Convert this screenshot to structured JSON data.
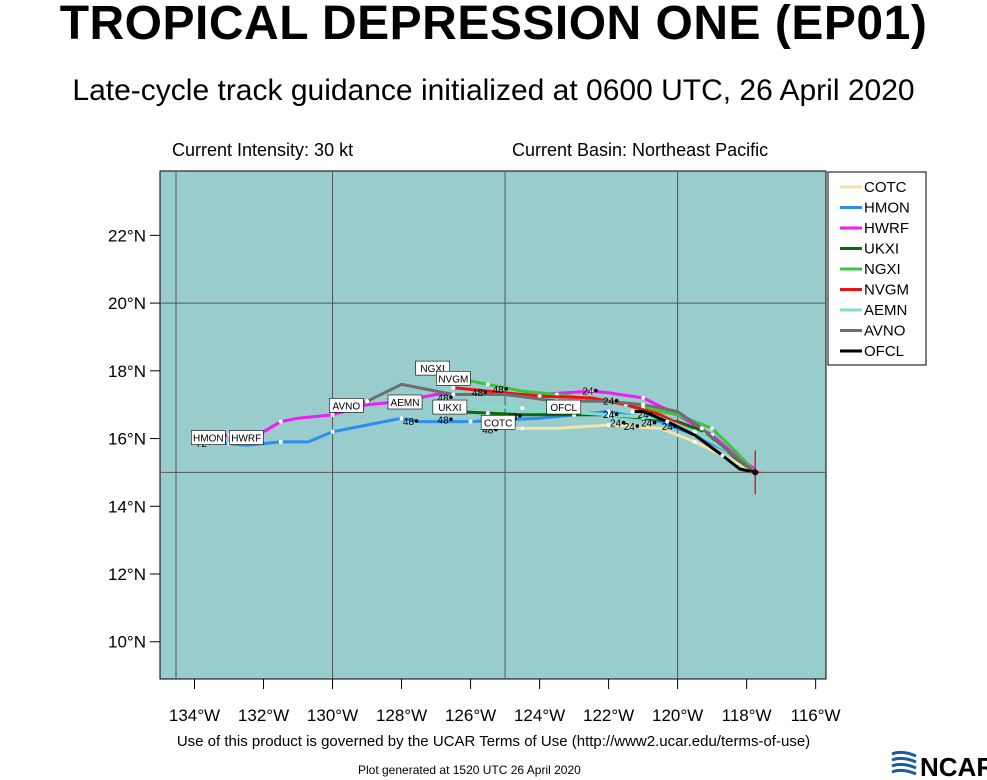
{
  "header": {
    "title": "TROPICAL DEPRESSION ONE (EP01)",
    "subtitle": "Late-cycle track guidance initialized at 0600 UTC, 26 April 2020",
    "intensity": "Current Intensity: 30 kt",
    "basin": "Current Basin: Northeast Pacific"
  },
  "footer": {
    "terms": "Use of this product is governed by the UCAR Terms of Use (http://www2.ucar.edu/terms-of-use)",
    "generated": "Plot generated at 1520 UTC   26 April 2020",
    "logo_text": "NCAR"
  },
  "colors": {
    "ocean": "#99cdcd",
    "grid": "#555555",
    "COTC": "#f3e3a8",
    "HMON": "#2b8ef0",
    "HWRF": "#ee1eee",
    "UKXI": "#0b6b0b",
    "NGXI": "#3cc43c",
    "NVGM": "#ee1111",
    "AEMN": "#7fe0c8",
    "AVNO": "#6e6e6e",
    "OFCL": "#000000"
  },
  "chart_data": {
    "type": "map-track",
    "title": "TROPICAL DEPRESSION ONE (EP01)",
    "xlim": [
      -135,
      -115.7
    ],
    "ylim": [
      8.9,
      23.9
    ],
    "x_ticks": [
      -134,
      -132,
      -130,
      -128,
      -126,
      -124,
      -122,
      -120,
      -118,
      -116
    ],
    "x_tick_labels": [
      "134°W",
      "132°W",
      "130°W",
      "128°W",
      "126°W",
      "124°W",
      "122°W",
      "120°W",
      "118°W",
      "116°W"
    ],
    "y_ticks": [
      10,
      12,
      14,
      16,
      18,
      20,
      22
    ],
    "y_tick_labels": [
      "10°N",
      "12°N",
      "14°N",
      "16°N",
      "18°N",
      "20°N",
      "22°N"
    ],
    "grid_lon": [
      -130,
      -125,
      -120
    ],
    "grid_lat": [
      15,
      20
    ],
    "legend_position": "right",
    "current_position": [
      -117.75,
      15.0
    ],
    "series": [
      {
        "name": "COTC",
        "points": [
          [
            -117.75,
            15.0
          ],
          [
            -118.5,
            15.4
          ],
          [
            -119.5,
            15.9
          ],
          [
            -120.5,
            16.3
          ],
          [
            -122.0,
            16.4
          ],
          [
            -123.5,
            16.3
          ],
          [
            -124.5,
            16.3
          ],
          [
            -125.5,
            16.3
          ]
        ]
      },
      {
        "name": "HMON",
        "points": [
          [
            -117.75,
            15.0
          ],
          [
            -118.5,
            15.6
          ],
          [
            -119.5,
            16.1
          ],
          [
            -120.5,
            16.5
          ],
          [
            -122.0,
            16.8
          ],
          [
            -124.0,
            16.6
          ],
          [
            -126.0,
            16.5
          ],
          [
            -127.5,
            16.5
          ],
          [
            -128.0,
            16.6
          ],
          [
            -129.0,
            16.4
          ],
          [
            -130.0,
            16.2
          ],
          [
            -130.7,
            15.9
          ],
          [
            -131.5,
            15.9
          ],
          [
            -132.5,
            15.8
          ],
          [
            -133.0,
            15.85
          ],
          [
            -134.0,
            15.9
          ]
        ]
      },
      {
        "name": "HWRF",
        "points": [
          [
            -117.75,
            15.1
          ],
          [
            -118.2,
            15.4
          ],
          [
            -119.0,
            16.1
          ],
          [
            -120.0,
            16.7
          ],
          [
            -121.0,
            17.2
          ],
          [
            -122.0,
            17.35
          ],
          [
            -122.5,
            17.4
          ],
          [
            -124.0,
            17.3
          ],
          [
            -125.5,
            17.3
          ],
          [
            -127.0,
            17.3
          ],
          [
            -128.0,
            17.1
          ],
          [
            -129.0,
            17.0
          ],
          [
            -130.0,
            16.7
          ],
          [
            -131.0,
            16.6
          ],
          [
            -131.5,
            16.5
          ],
          [
            -132.0,
            16.2
          ],
          [
            -133.0,
            16.1
          ],
          [
            -134.0,
            16.0
          ]
        ]
      },
      {
        "name": "UKXI",
        "points": [
          [
            -117.75,
            15.0
          ],
          [
            -118.3,
            15.4
          ],
          [
            -119.2,
            16.2
          ],
          [
            -120.0,
            16.5
          ],
          [
            -121.0,
            16.6
          ],
          [
            -122.0,
            16.7
          ],
          [
            -123.0,
            16.7
          ],
          [
            -124.5,
            16.7
          ],
          [
            -125.5,
            16.75
          ],
          [
            -126.5,
            16.8
          ]
        ]
      },
      {
        "name": "NGXI",
        "points": [
          [
            -117.75,
            15.0
          ],
          [
            -118.2,
            15.5
          ],
          [
            -119.0,
            16.3
          ],
          [
            -120.0,
            16.7
          ],
          [
            -121.0,
            16.9
          ],
          [
            -122.0,
            17.1
          ],
          [
            -123.5,
            17.3
          ],
          [
            -124.5,
            17.4
          ],
          [
            -125.5,
            17.6
          ],
          [
            -126.5,
            17.8
          ]
        ]
      },
      {
        "name": "NVGM",
        "points": [
          [
            -117.75,
            15.0
          ],
          [
            -118.5,
            15.6
          ],
          [
            -119.5,
            16.2
          ],
          [
            -120.5,
            16.7
          ],
          [
            -121.5,
            17.0
          ],
          [
            -122.5,
            17.2
          ],
          [
            -124.0,
            17.25
          ],
          [
            -125.5,
            17.4
          ],
          [
            -126.5,
            17.5
          ]
        ]
      },
      {
        "name": "AEMN",
        "points": [
          [
            -117.75,
            15.0
          ],
          [
            -118.5,
            15.6
          ],
          [
            -119.5,
            16.2
          ],
          [
            -120.5,
            16.6
          ],
          [
            -122.0,
            16.7
          ],
          [
            -123.5,
            16.8
          ],
          [
            -124.5,
            16.9
          ],
          [
            -126.0,
            17.0
          ],
          [
            -127.0,
            16.9
          ],
          [
            -127.7,
            16.9
          ]
        ]
      },
      {
        "name": "AVNO",
        "points": [
          [
            -117.75,
            15.0
          ],
          [
            -118.5,
            15.6
          ],
          [
            -119.3,
            16.3
          ],
          [
            -120.0,
            16.8
          ],
          [
            -121.0,
            17.0
          ],
          [
            -122.0,
            17.1
          ],
          [
            -123.5,
            17.1
          ],
          [
            -125.0,
            17.3
          ],
          [
            -126.5,
            17.3
          ],
          [
            -128.0,
            17.6
          ],
          [
            -129.0,
            17.1
          ],
          [
            -130.0,
            16.9
          ]
        ]
      },
      {
        "name": "OFCL",
        "points": [
          [
            -117.75,
            15.0
          ],
          [
            -118.2,
            15.1
          ],
          [
            -118.7,
            15.5
          ],
          [
            -119.5,
            16.1
          ],
          [
            -120.3,
            16.5
          ],
          [
            -121.0,
            16.8
          ],
          [
            -121.3,
            16.8
          ]
        ]
      }
    ],
    "track_labels": [
      {
        "text": "NGXI",
        "lon": -127.1,
        "lat": 18.05
      },
      {
        "text": "NVGM",
        "lon": -126.5,
        "lat": 17.75
      },
      {
        "text": "AVNO",
        "lon": -129.6,
        "lat": 16.95
      },
      {
        "text": "AEMN",
        "lon": -127.9,
        "lat": 17.05
      },
      {
        "text": "UKXI",
        "lon": -126.6,
        "lat": 16.9
      },
      {
        "text": "OFCL",
        "lon": -123.3,
        "lat": 16.9
      },
      {
        "text": "COTC",
        "lon": -125.2,
        "lat": 16.45
      },
      {
        "text": "HMON",
        "lon": -133.6,
        "lat": 16.0
      },
      {
        "text": "HWRF",
        "lon": -132.5,
        "lat": 16.0
      }
    ],
    "hour_labels": [
      {
        "text": "48",
        "lon": -125.8,
        "lat": 17.25
      },
      {
        "text": "48",
        "lon": -125.2,
        "lat": 17.35
      },
      {
        "text": "48",
        "lon": -126.8,
        "lat": 17.1
      },
      {
        "text": "48",
        "lon": -128.0,
        "lat": 17.0
      },
      {
        "text": "48",
        "lon": -127.8,
        "lat": 16.4
      },
      {
        "text": "48",
        "lon": -126.8,
        "lat": 16.45
      },
      {
        "text": "48",
        "lon": -124.8,
        "lat": 16.55
      },
      {
        "text": "48",
        "lon": -125.5,
        "lat": 16.15
      },
      {
        "text": "72",
        "lon": -133.8,
        "lat": 15.75
      },
      {
        "text": "24",
        "lon": -122.6,
        "lat": 17.3
      },
      {
        "text": "24",
        "lon": -122.0,
        "lat": 17.0
      },
      {
        "text": "24",
        "lon": -122.0,
        "lat": 16.6
      },
      {
        "text": "24",
        "lon": -121.8,
        "lat": 16.35
      },
      {
        "text": "24",
        "lon": -121.4,
        "lat": 16.25
      },
      {
        "text": "24",
        "lon": -121.0,
        "lat": 16.6
      },
      {
        "text": "24",
        "lon": -120.9,
        "lat": 16.35
      },
      {
        "text": "24",
        "lon": -120.3,
        "lat": 16.25
      }
    ]
  }
}
